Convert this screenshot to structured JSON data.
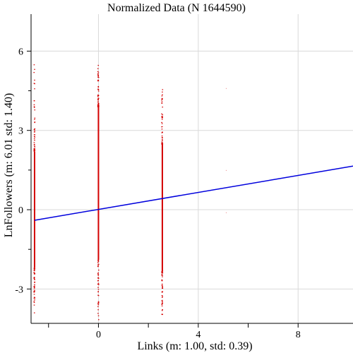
{
  "chart_data": {
    "type": "scatter",
    "title": "Normalized Data (N 1644590)",
    "xlabel": "Links (m: 1.00, std: 0.39)",
    "ylabel": "LnFollowers (m: 6.01 std: 1.40)",
    "xlim": [
      -2.7,
      10.2
    ],
    "ylim": [
      -4.3,
      7.4
    ],
    "grid": true,
    "x_ticks": [
      0,
      4,
      8
    ],
    "y_ticks": [
      -3,
      0,
      3,
      6
    ],
    "x_minor_ticks": [
      -2,
      2,
      6
    ],
    "point_color": "#d40000",
    "line_color": "#0000dd",
    "scatter_columns": [
      {
        "x": -2.56,
        "y_min": -3.9,
        "y_max": 5.6,
        "dense_min": -2.2,
        "dense_max": 2.2
      },
      {
        "x": 0.0,
        "y_min": -4.3,
        "y_max": 5.6,
        "dense_min": -1.9,
        "dense_max": 3.9
      },
      {
        "x": 2.56,
        "y_min": -4.3,
        "y_max": 4.6,
        "dense_min": -2.3,
        "dense_max": 2.5
      }
    ],
    "isolated_points": [
      {
        "x": 5.12,
        "y": 1.5
      },
      {
        "x": 5.12,
        "y": -0.1
      },
      {
        "x": 5.12,
        "y": 4.6
      }
    ],
    "regression_line": {
      "x": [
        -2.56,
        10.2
      ],
      "y": [
        -0.4,
        1.65
      ]
    }
  }
}
